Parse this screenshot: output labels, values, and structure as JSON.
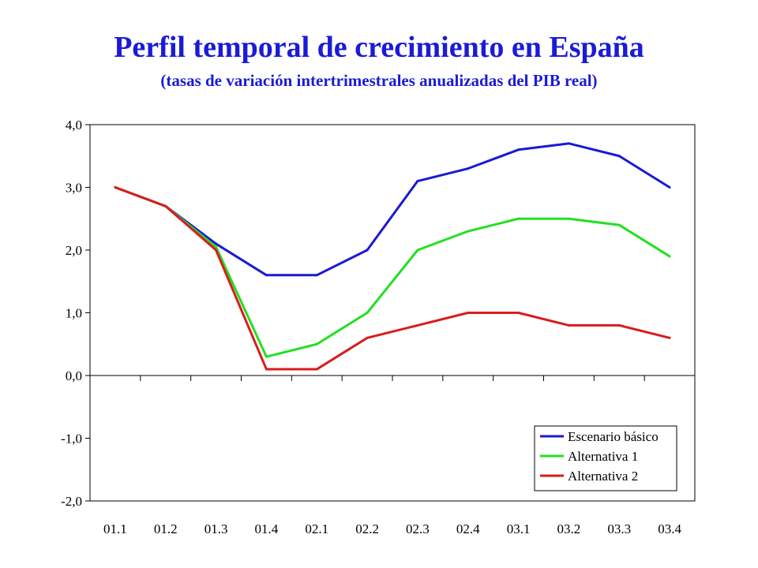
{
  "title": "Perfil temporal de crecimiento en España",
  "subtitle": "(tasas de variación intertrimestrales anualizadas del PIB real)",
  "chart_data": {
    "type": "line",
    "categories": [
      "01.1",
      "01.2",
      "01.3",
      "01.4",
      "02.1",
      "02.2",
      "02.3",
      "02.4",
      "03.1",
      "03.2",
      "03.3",
      "03.4"
    ],
    "y_ticks": [
      "4,0",
      "3,0",
      "2,0",
      "1,0",
      "0,0",
      "-1,0",
      "-2,0"
    ],
    "ylim": [
      -2,
      4
    ],
    "grid": false,
    "legend_position": "bottom-right",
    "series": [
      {
        "name": "Escenario básico",
        "color": "#1a1ad1",
        "values": [
          3.0,
          2.7,
          2.1,
          1.6,
          1.6,
          2.0,
          3.1,
          3.3,
          3.6,
          3.7,
          3.5,
          3.0
        ]
      },
      {
        "name": "Alternativa 1",
        "color": "#22e022",
        "values": [
          3.0,
          2.7,
          2.05,
          0.3,
          0.5,
          1.0,
          2.0,
          2.3,
          2.5,
          2.5,
          2.4,
          1.9
        ]
      },
      {
        "name": "Alternativa 2",
        "color": "#d91c1c",
        "values": [
          3.0,
          2.7,
          2.0,
          0.1,
          0.1,
          0.6,
          0.8,
          1.0,
          1.0,
          0.8,
          0.8,
          0.6
        ]
      }
    ]
  }
}
